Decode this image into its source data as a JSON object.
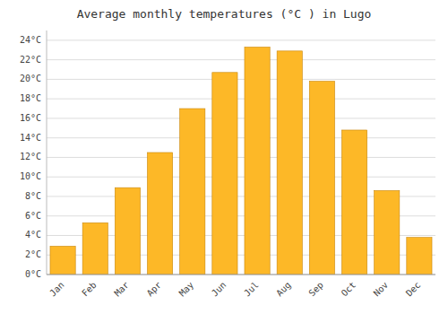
{
  "chart_data": {
    "type": "bar",
    "title": "Average monthly temperatures (°C ) in Lugo",
    "categories": [
      "Jan",
      "Feb",
      "Mar",
      "Apr",
      "May",
      "Jun",
      "Jul",
      "Aug",
      "Sep",
      "Oct",
      "Nov",
      "Dec"
    ],
    "values": [
      2.9,
      5.3,
      8.9,
      12.5,
      17.0,
      20.7,
      23.3,
      22.9,
      19.8,
      14.8,
      8.6,
      3.8
    ],
    "color": "#FDB827",
    "ylim": [
      0,
      25
    ],
    "yticks": [
      {
        "value": 0,
        "label": "0°C"
      },
      {
        "value": 2,
        "label": "2°C"
      },
      {
        "value": 4,
        "label": "4°C"
      },
      {
        "value": 6,
        "label": "6°C"
      },
      {
        "value": 8,
        "label": "8°C"
      },
      {
        "value": 10,
        "label": "10°C"
      },
      {
        "value": 12,
        "label": "12°C"
      },
      {
        "value": 14,
        "label": "14°C"
      },
      {
        "value": 16,
        "label": "16°C"
      },
      {
        "value": 18,
        "label": "18°C"
      },
      {
        "value": 20,
        "label": "20°C"
      },
      {
        "value": 22,
        "label": "22°C"
      },
      {
        "value": 24,
        "label": "24°C"
      }
    ],
    "grid": true
  }
}
